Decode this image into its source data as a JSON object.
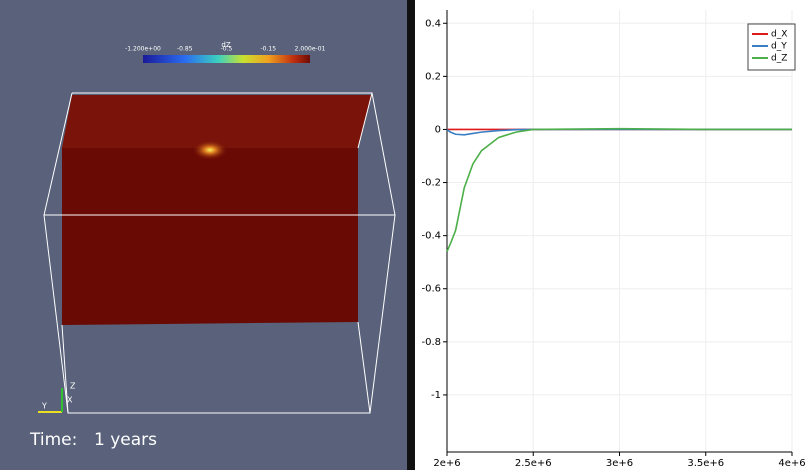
{
  "render_view": {
    "colorbar": {
      "title": "dZ",
      "labels": [
        "-1.200e+00",
        "-0.85",
        "-0.5",
        "-0.15",
        "2.000e-01"
      ]
    },
    "time_label": "Time:",
    "time_value": "1 years",
    "axes": {
      "x": "X",
      "y": "Y",
      "z": "Z"
    }
  },
  "chart_data": {
    "type": "line",
    "x": [
      2000000,
      2020000,
      2050000,
      2100000,
      2150000,
      2200000,
      2300000,
      2400000,
      2500000,
      3000000,
      3500000,
      4000000
    ],
    "series": [
      {
        "name": "d_X",
        "color": "#e0191b",
        "values": [
          0,
          0,
          0,
          0,
          0,
          0,
          0,
          0,
          0,
          0,
          0,
          0
        ]
      },
      {
        "name": "d_Y",
        "color": "#3a7ec4",
        "values": [
          0,
          -0.01,
          -0.018,
          -0.02,
          -0.015,
          -0.01,
          -0.004,
          -0.001,
          0,
          0,
          0,
          0
        ]
      },
      {
        "name": "d_Z",
        "color": "#4caf49",
        "values": [
          -0.46,
          -0.43,
          -0.38,
          -0.22,
          -0.13,
          -0.08,
          -0.03,
          -0.01,
          0,
          0.003,
          0,
          0
        ]
      }
    ],
    "xlim": [
      2000000,
      4000000
    ],
    "xticks": [
      {
        "value": 2000000,
        "label": "2e+6"
      },
      {
        "value": 2500000,
        "label": "2.5e+6"
      },
      {
        "value": 3000000,
        "label": "3e+6"
      },
      {
        "value": 3500000,
        "label": "3.5e+6"
      },
      {
        "value": 4000000,
        "label": "4e+6"
      }
    ],
    "ylim": [
      -1.215,
      0.45
    ],
    "yticks": [
      0.4,
      0.2,
      0,
      -0.2,
      -0.4,
      -0.6,
      -0.8,
      -1
    ],
    "grid": true,
    "legend": "top-right"
  }
}
